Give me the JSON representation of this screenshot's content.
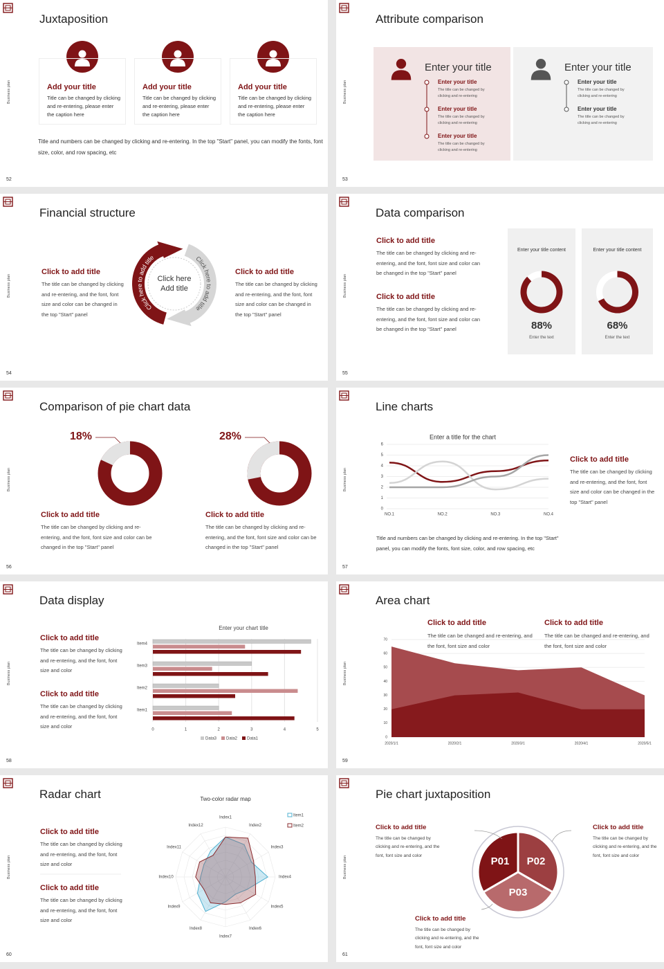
{
  "side_label": "Business plan",
  "slides": [
    {
      "number": "52",
      "title": "Juxtaposition",
      "cards": [
        {
          "title": "Add your title",
          "text": "Title can be changed by clicking and re-entering, please enter the caption here"
        },
        {
          "title": "Add your title",
          "text": "Title can be changed by clicking and re-entering, please enter the caption here"
        },
        {
          "title": "Add your title",
          "text": "Title can be changed by clicking and re-entering, please enter the caption here"
        }
      ],
      "footer": "Title and numbers can be changed by clicking and re-entering. In the top \"Start\" panel, you can modify the fonts, font size, color, and row spacing, etc"
    },
    {
      "number": "53",
      "title": "Attribute comparison",
      "panels": [
        {
          "title": "Enter your title",
          "items": [
            {
              "title": "Enter your title",
              "text": "The title can be changed by clicking and re-entering"
            },
            {
              "title": "Enter your title",
              "text": "The title can be changed by clicking and re-entering"
            },
            {
              "title": "Enter your title",
              "text": "The title can be changed by clicking and re-entering"
            }
          ]
        },
        {
          "title": "Enter your title",
          "items": [
            {
              "title": "Enter your title",
              "text": "The title can be changed by clicking and re-entering"
            },
            {
              "title": "Enter your title",
              "text": "The title can be changed by clicking and re-entering"
            }
          ]
        }
      ]
    },
    {
      "number": "54",
      "title": "Financial structure",
      "blocks": [
        {
          "title": "Click to add title",
          "text": "The title can be changed by clicking and re-entering, and the font, font size and color can be changed in the top \"Start\" panel"
        },
        {
          "title": "Click to add title",
          "text": "The title can be changed by clicking and re-entering, and the font, font size and color can be changed in the top \"Start\" panel"
        }
      ],
      "center": "Click here Add title",
      "arc_labels": [
        "Click here to add title",
        "Click here to add title"
      ]
    },
    {
      "number": "55",
      "title": "Data comparison",
      "blocks": [
        {
          "title": "Click to add title",
          "text": "The title can be changed by clicking and re-entering, and the font, font size and color can be changed in the top \"Start\" panel"
        },
        {
          "title": "Click to add title",
          "text": "The title can be changed by clicking and re-entering, and the font, font size and color can be changed in the top \"Start\" panel"
        }
      ],
      "cards": [
        {
          "heading": "Enter your title content",
          "value": 88,
          "value_label": "88%",
          "caption": "Enter the text"
        },
        {
          "heading": "Enter your title content",
          "value": 68,
          "value_label": "68%",
          "caption": "Enter the text"
        }
      ]
    },
    {
      "number": "56",
      "title": "Comparison of pie chart data",
      "pies": [
        {
          "value": 18,
          "value_label": "18%"
        },
        {
          "value": 28,
          "value_label": "28%"
        }
      ],
      "blocks": [
        {
          "title": "Click to add title",
          "text": "The title can be changed by clicking and re-entering, and the font, font size and color can be changed in the top \"Start\" panel"
        },
        {
          "title": "Click to add title",
          "text": "The title can be changed by clicking and re-entering, and the font, font size and color can be changed in the top \"Start\" panel"
        }
      ]
    },
    {
      "number": "57",
      "title": "Line charts",
      "chart": {
        "type": "line",
        "title": "Enter a title for the chart",
        "categories": [
          "NO.1",
          "NO.2",
          "NO.3",
          "NO.4"
        ],
        "ylim": [
          0,
          6
        ],
        "yticks": [
          0,
          1,
          2,
          3,
          4,
          5,
          6
        ],
        "series": [
          {
            "color": "#7f1416",
            "values": [
              4.3,
              2.5,
              3.5,
              4.5
            ]
          },
          {
            "color": "#d4d4d4",
            "values": [
              2.4,
              4.4,
              1.8,
              2.8
            ]
          },
          {
            "color": "#a6a6a6",
            "values": [
              2,
              2,
              3,
              5
            ]
          }
        ]
      },
      "block": {
        "title": "Click to add title",
        "text": "The title can be changed by clicking and re-entering, and the font, font size and color can be changed in the top \"Start\" panel"
      },
      "footer": "Title and numbers can be changed by clicking and re-entering. In the top \"Start\" panel, you can modify the fonts, font size, color, and row spacing, etc"
    },
    {
      "number": "58",
      "title": "Data display",
      "blocks": [
        {
          "title": "Click to add title",
          "text": "The title can be changed by clicking and re-entering, and the font, font size and color"
        },
        {
          "title": "Click to add title",
          "text": "The title can be changed by clicking and re-entering, and the font, font size and color"
        }
      ],
      "chart": {
        "type": "bar",
        "title": "Enter your chart title",
        "categories": [
          "Item1",
          "Item2",
          "Item3",
          "Item4"
        ],
        "xlim": [
          0,
          5
        ],
        "xticks": [
          0,
          1,
          2,
          3,
          4,
          5
        ],
        "series": [
          {
            "name": "Data3",
            "color": "#c9c9c9",
            "values": [
              2,
              2,
              3,
              4.8
            ]
          },
          {
            "name": "Data2",
            "color": "#c98c8e",
            "values": [
              2.4,
              4.4,
              1.8,
              2.8
            ]
          },
          {
            "name": "Data1",
            "color": "#7f1416",
            "values": [
              4.3,
              2.5,
              3.5,
              4.5
            ]
          }
        ]
      }
    },
    {
      "number": "59",
      "title": "Area chart",
      "blocks": [
        {
          "title": "Click to add title",
          "text": "The title can be changed and re-entering, and the font, font size and color"
        },
        {
          "title": "Click to add title",
          "text": "The title can be changed and re-entering, and the font, font size and color"
        }
      ],
      "chart": {
        "type": "area",
        "categories": [
          "2020/1/1",
          "2020/2/1",
          "2020/3/1",
          "2020/4/1",
          "2020/5/1"
        ],
        "ylim": [
          0,
          70
        ],
        "yticks": [
          0,
          10,
          20,
          30,
          40,
          50,
          60,
          70
        ],
        "series": [
          {
            "color": "#a64b4e",
            "values": [
              65,
              53,
              48,
              50,
              30
            ]
          },
          {
            "color": "#861a1d",
            "values": [
              20,
              30,
              32,
              20,
              20
            ]
          }
        ]
      }
    },
    {
      "number": "60",
      "title": "Radar chart",
      "blocks": [
        {
          "title": "Click to add title",
          "text": "The title can be changed by clicking and re-entering, and the font, font size and color"
        },
        {
          "title": "Click to add title",
          "text": "The title can be changed by clicking and re-entering, and the font, font size and color"
        }
      ],
      "chart": {
        "type": "radar",
        "title": "Two-color radar map",
        "categories": [
          "Index1",
          "Index2",
          "Index3",
          "Index4",
          "Index5",
          "Index6",
          "Index7",
          "Index8",
          "Index9",
          "Index10",
          "Index11",
          "Index12"
        ],
        "rlim": [
          0,
          10
        ],
        "series": [
          {
            "name": "Item1",
            "color": "#4fb0d0",
            "values": [
              8,
              7.5,
              6,
              8.5,
              5,
              4,
              5,
              8,
              6.5,
              5,
              5,
              6
            ]
          },
          {
            "name": "Item2",
            "color": "#8a2b2e",
            "values": [
              8,
              9,
              6.5,
              6,
              7,
              6,
              5.5,
              6,
              5,
              6,
              6,
              5
            ]
          }
        ]
      }
    },
    {
      "number": "61",
      "title": "Pie chart juxtaposition",
      "segments": [
        "P01",
        "P02",
        "P03"
      ],
      "blocks": [
        {
          "title": "Click to add title",
          "text": "The title can be changed by clicking and re-entering, and the font, font size and color"
        },
        {
          "title": "Click to add title",
          "text": "The title can be changed by clicking and re-entering, and the font, font size and color"
        },
        {
          "title": "Click to add title",
          "text": "The title can be changed by clicking and re-entering, and the font, font size and color"
        }
      ]
    }
  ]
}
